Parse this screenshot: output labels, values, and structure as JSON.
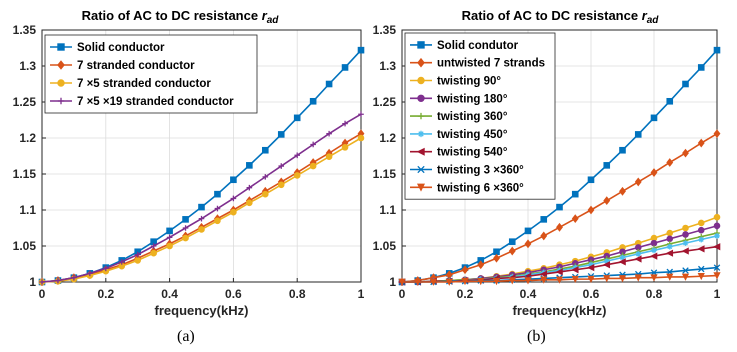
{
  "chart_data": [
    {
      "type": "line",
      "panel_label": "(a)",
      "title": "Ratio of AC to DC resistance",
      "title_symbol": "r",
      "title_subscript": "ad",
      "xlabel": "frequency(kHz)",
      "ylabel": "",
      "xlim": [
        0,
        1
      ],
      "ylim": [
        1,
        1.35
      ],
      "xticks": [
        0,
        0.2,
        0.4,
        0.6,
        0.8,
        1
      ],
      "xtick_labels": [
        "0",
        "0.2",
        "0.4",
        "0.6",
        "0.8",
        "1"
      ],
      "yticks": [
        1,
        1.05,
        1.1,
        1.15,
        1.2,
        1.25,
        1.3,
        1.35
      ],
      "ytick_labels": [
        "1",
        "1.05",
        "1.1",
        "1.15",
        "1.2",
        "1.25",
        "1.3",
        "1.35"
      ],
      "grid": true,
      "legend_position": "top-left",
      "x": [
        0,
        0.05,
        0.1,
        0.15,
        0.2,
        0.25,
        0.3,
        0.35,
        0.4,
        0.45,
        0.5,
        0.55,
        0.6,
        0.65,
        0.7,
        0.75,
        0.8,
        0.85,
        0.9,
        0.95,
        1
      ],
      "series": [
        {
          "name": "Solid conductor",
          "color": "#0072BD",
          "marker": "square",
          "values": [
            1.0,
            1.002,
            1.006,
            1.012,
            1.02,
            1.03,
            1.042,
            1.056,
            1.071,
            1.087,
            1.104,
            1.122,
            1.142,
            1.162,
            1.183,
            1.205,
            1.228,
            1.251,
            1.275,
            1.298,
            1.322
          ]
        },
        {
          "name": "7 stranded conductor",
          "color": "#D95319",
          "marker": "diamond",
          "values": [
            1.0,
            1.002,
            1.006,
            1.01,
            1.017,
            1.024,
            1.033,
            1.043,
            1.053,
            1.064,
            1.076,
            1.088,
            1.1,
            1.113,
            1.126,
            1.139,
            1.152,
            1.166,
            1.179,
            1.193,
            1.206
          ]
        },
        {
          "name": "7 ×5 stranded conductor",
          "color": "#EDB120",
          "marker": "circle",
          "values": [
            1.0,
            1.001,
            1.004,
            1.009,
            1.015,
            1.022,
            1.03,
            1.04,
            1.05,
            1.061,
            1.073,
            1.085,
            1.097,
            1.11,
            1.122,
            1.135,
            1.148,
            1.161,
            1.174,
            1.187,
            1.2
          ]
        },
        {
          "name": "7 ×5 ×19 stranded conductor",
          "color": "#7E2F8E",
          "marker": "plus",
          "values": [
            1.0,
            1.002,
            1.006,
            1.012,
            1.019,
            1.028,
            1.038,
            1.05,
            1.062,
            1.075,
            1.088,
            1.102,
            1.116,
            1.131,
            1.146,
            1.161,
            1.176,
            1.191,
            1.206,
            1.22,
            1.233
          ]
        }
      ]
    },
    {
      "type": "line",
      "panel_label": "(b)",
      "title": "Ratio of AC to DC resistance",
      "title_symbol": "r",
      "title_subscript": "ad",
      "xlabel": "frequency(kHz)",
      "ylabel": "",
      "xlim": [
        0,
        1
      ],
      "ylim": [
        1,
        1.35
      ],
      "xticks": [
        0,
        0.2,
        0.4,
        0.6,
        0.8,
        1
      ],
      "xtick_labels": [
        "0",
        "0.2",
        "0.4",
        "0.6",
        "0.8",
        "1"
      ],
      "yticks": [
        1,
        1.05,
        1.1,
        1.15,
        1.2,
        1.25,
        1.3,
        1.35
      ],
      "ytick_labels": [
        "1",
        "1.05",
        "1.1",
        "1.15",
        "1.2",
        "1.25",
        "1.3",
        "1.35"
      ],
      "grid": true,
      "legend_position": "top-left",
      "x": [
        0,
        0.05,
        0.1,
        0.15,
        0.2,
        0.25,
        0.3,
        0.35,
        0.4,
        0.45,
        0.5,
        0.55,
        0.6,
        0.65,
        0.7,
        0.75,
        0.8,
        0.85,
        0.9,
        0.95,
        1
      ],
      "series": [
        {
          "name": "Solid condutor",
          "color": "#0072BD",
          "marker": "square",
          "values": [
            1.0,
            1.002,
            1.006,
            1.012,
            1.02,
            1.03,
            1.042,
            1.056,
            1.071,
            1.087,
            1.104,
            1.122,
            1.142,
            1.162,
            1.183,
            1.205,
            1.228,
            1.251,
            1.275,
            1.298,
            1.322
          ]
        },
        {
          "name": "untwisted 7 strands",
          "color": "#D95319",
          "marker": "diamond",
          "values": [
            1.0,
            1.002,
            1.006,
            1.01,
            1.017,
            1.024,
            1.033,
            1.043,
            1.053,
            1.064,
            1.076,
            1.088,
            1.1,
            1.113,
            1.126,
            1.139,
            1.152,
            1.166,
            1.179,
            1.193,
            1.206
          ]
        },
        {
          "name": "twisting 90°",
          "color": "#EDB120",
          "marker": "circle",
          "values": [
            1.0,
            1.0,
            1.001,
            1.002,
            1.003,
            1.005,
            1.008,
            1.011,
            1.015,
            1.019,
            1.024,
            1.029,
            1.035,
            1.041,
            1.048,
            1.054,
            1.061,
            1.068,
            1.075,
            1.082,
            1.09
          ]
        },
        {
          "name": "twisting 180°",
          "color": "#7E2F8E",
          "marker": "circle",
          "values": [
            1.0,
            1.0,
            1.001,
            1.002,
            1.003,
            1.005,
            1.007,
            1.01,
            1.013,
            1.017,
            1.021,
            1.026,
            1.031,
            1.036,
            1.042,
            1.048,
            1.054,
            1.06,
            1.066,
            1.072,
            1.078
          ]
        },
        {
          "name": "twisting 360°",
          "color": "#77AC30",
          "marker": "plus",
          "values": [
            1.0,
            1.0,
            1.001,
            1.002,
            1.003,
            1.004,
            1.006,
            1.008,
            1.011,
            1.014,
            1.018,
            1.022,
            1.027,
            1.032,
            1.037,
            1.042,
            1.047,
            1.053,
            1.058,
            1.063,
            1.068
          ]
        },
        {
          "name": "twisting 450°",
          "color": "#4DBEEE",
          "marker": "star",
          "values": [
            1.0,
            1.0,
            1.001,
            1.001,
            1.002,
            1.004,
            1.005,
            1.007,
            1.01,
            1.013,
            1.016,
            1.02,
            1.024,
            1.029,
            1.034,
            1.039,
            1.044,
            1.049,
            1.054,
            1.059,
            1.064
          ]
        },
        {
          "name": "twisting 540°",
          "color": "#A2142F",
          "marker": "triangle-left",
          "values": [
            1.0,
            1.0,
            1.001,
            1.001,
            1.002,
            1.003,
            1.005,
            1.006,
            1.008,
            1.011,
            1.014,
            1.017,
            1.02,
            1.024,
            1.028,
            1.032,
            1.036,
            1.04,
            1.043,
            1.046,
            1.049
          ]
        },
        {
          "name": "twisting 3 ×360°",
          "color": "#0072BD",
          "marker": "x",
          "values": [
            1.0,
            1.0,
            1.0,
            1.001,
            1.001,
            1.002,
            1.002,
            1.003,
            1.004,
            1.005,
            1.006,
            1.007,
            1.008,
            1.009,
            1.01,
            1.011,
            1.013,
            1.014,
            1.016,
            1.018,
            1.02
          ]
        },
        {
          "name": "twisting 6 ×360°",
          "color": "#D95319",
          "marker": "triangle-down",
          "values": [
            1.0,
            1.0,
            1.0,
            1.0,
            1.001,
            1.001,
            1.001,
            1.002,
            1.002,
            1.003,
            1.003,
            1.004,
            1.004,
            1.005,
            1.005,
            1.006,
            1.006,
            1.007,
            1.007,
            1.008,
            1.009
          ]
        }
      ]
    }
  ]
}
